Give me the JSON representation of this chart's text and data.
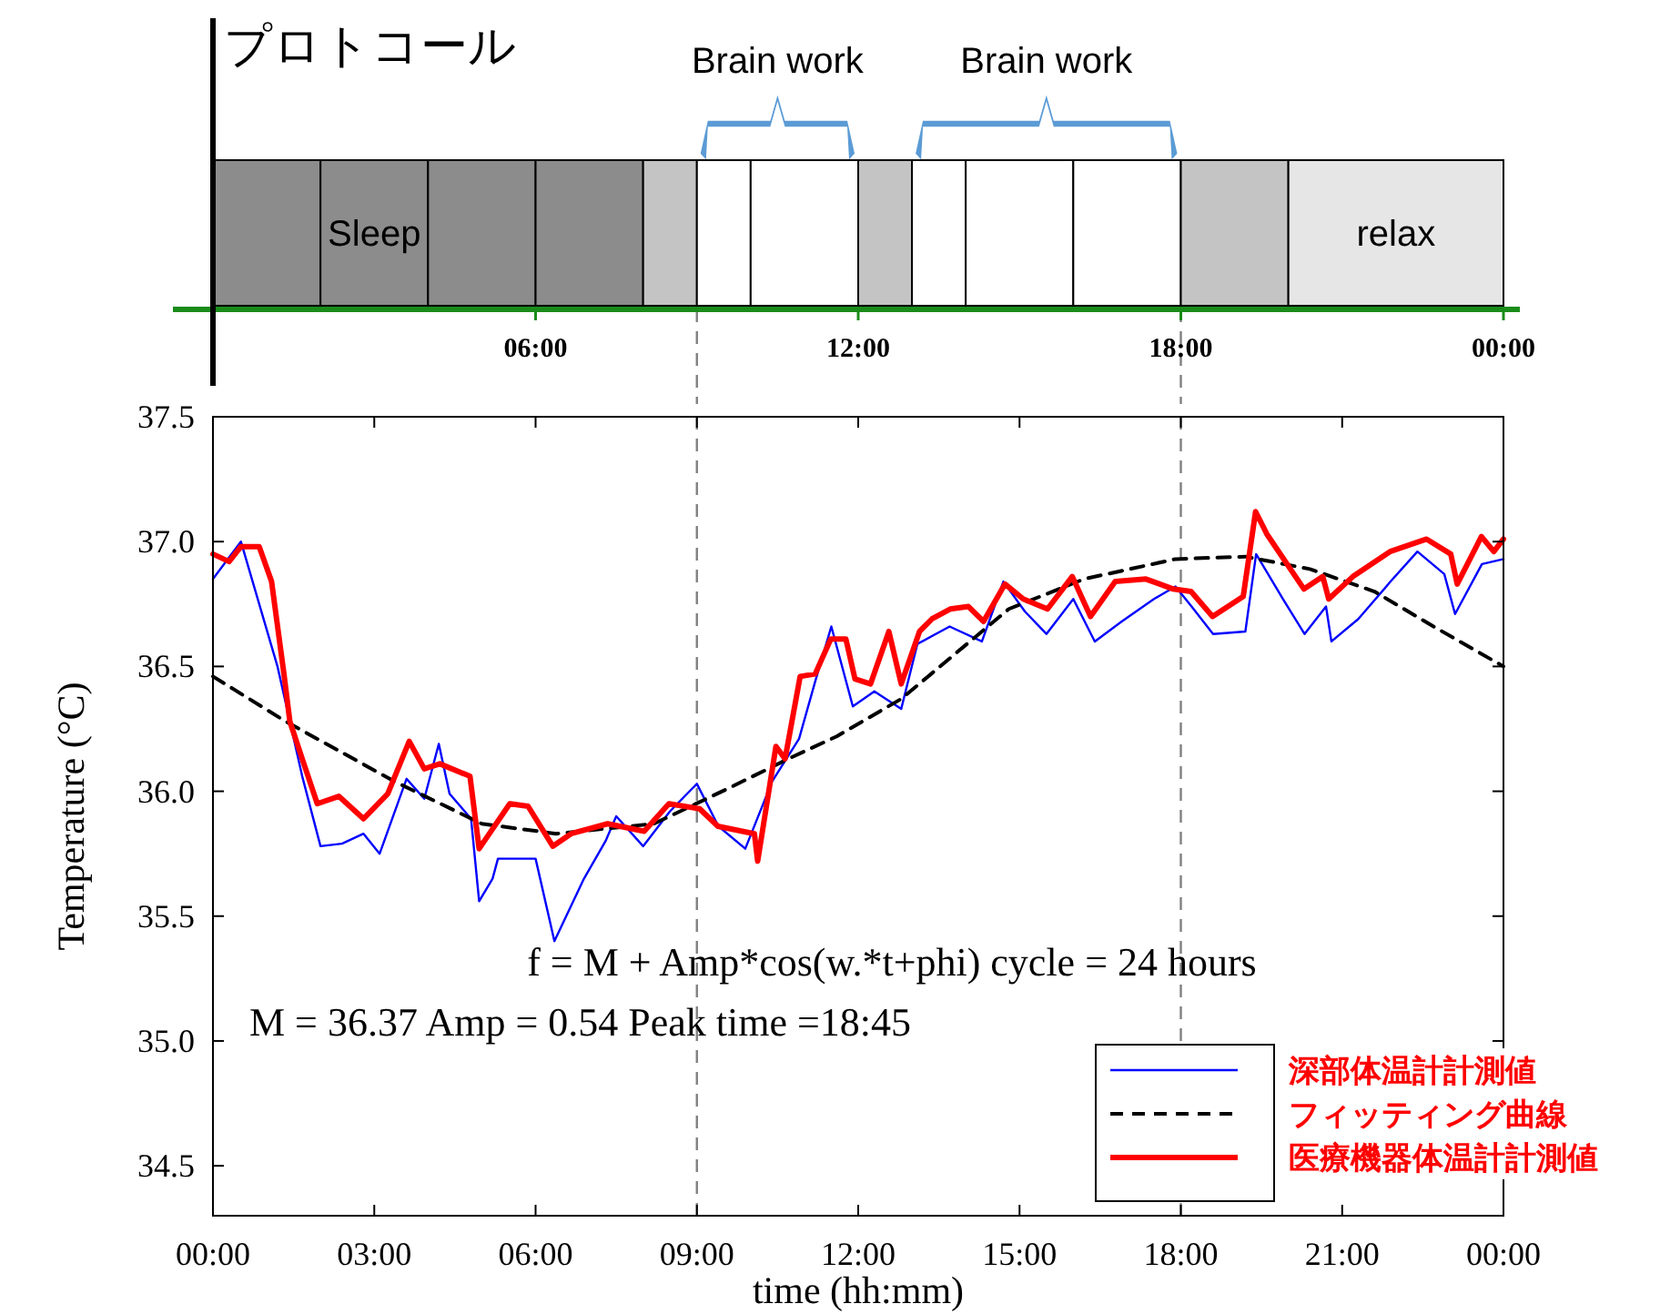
{
  "chart_data": [
    {
      "type": "bar",
      "orientation": "horizontal",
      "stacked": true,
      "title": "プロトコール",
      "categories": [
        null
      ],
      "xlim": [
        0,
        24
      ],
      "xticks": [
        {
          "value": 6,
          "label": "06:00"
        },
        {
          "value": 12,
          "label": "12:00"
        },
        {
          "value": 18,
          "label": "18:00"
        },
        {
          "value": 24,
          "label": "00:00"
        }
      ],
      "series": [
        {
          "color": "#8c8c8c",
          "values": [
            2
          ]
        },
        {
          "name": "Sleep",
          "color": "#8c8c8c",
          "values": [
            2
          ]
        },
        {
          "color": "#8c8c8c",
          "values": [
            2
          ]
        },
        {
          "color": "#8c8c8c",
          "values": [
            2
          ]
        },
        {
          "color": "#c4c4c4",
          "values": [
            1
          ]
        },
        {
          "color": "#ffffff",
          "values": [
            1
          ]
        },
        {
          "name": "Brain work",
          "color": "#ffffff",
          "values": [
            2
          ]
        },
        {
          "color": "#c4c4c4",
          "values": [
            1
          ]
        },
        {
          "color": "#ffffff",
          "values": [
            1
          ]
        },
        {
          "name": "Brain work",
          "color": "#ffffff",
          "values": [
            2
          ]
        },
        {
          "color": "#ffffff",
          "values": [
            2
          ]
        },
        {
          "color": "#c4c4c4",
          "values": [
            2
          ]
        },
        {
          "name": "relax",
          "color": "#e6e6e6",
          "values": [
            4
          ]
        }
      ],
      "ref_lines": [
        {
          "axis": "x",
          "value": 9,
          "color": "#808080",
          "line_style": "dashed"
        },
        {
          "axis": "x",
          "value": 18,
          "color": "#808080",
          "line_style": "dashed"
        }
      ]
    },
    {
      "type": "line",
      "xlabel": "time (hh:mm)",
      "ylabel": "Temperature (°C)",
      "xlim": [
        0,
        24
      ],
      "xticks": [
        {
          "value": 0,
          "label": "00:00"
        },
        {
          "value": 3,
          "label": "03:00"
        },
        {
          "value": 6,
          "label": "06:00"
        },
        {
          "value": 9,
          "label": "09:00"
        },
        {
          "value": 12,
          "label": "12:00"
        },
        {
          "value": 15,
          "label": "15:00"
        },
        {
          "value": 18,
          "label": "18:00"
        },
        {
          "value": 21,
          "label": "21:00"
        },
        {
          "value": 24,
          "label": "00:00"
        }
      ],
      "ylim": [
        34.3,
        37.5
      ],
      "yticks": [
        34.5,
        {
          "value": 35,
          "label": "35.0"
        },
        35.5,
        {
          "value": 36,
          "label": "36.0"
        },
        36.5,
        {
          "value": 37,
          "label": "37.0"
        },
        37.5
      ],
      "legend": "bottom right",
      "annotations": [
        "f = M + Amp*cos(w.*t+phi)  cycle = 24 hours",
        "M = 36.37  Amp = 0.54  Peak time =18:45"
      ],
      "ref_lines": [
        {
          "axis": "x",
          "value": 9,
          "color": "#808080",
          "line_style": "dashed"
        },
        {
          "axis": "x",
          "value": 18,
          "color": "#808080",
          "line_style": "dashed"
        }
      ],
      "series": [
        {
          "name": "深部体温計計測値",
          "color": "#0000ff",
          "x": [
            0,
            0.52,
            1.2,
            1.66,
            2.0,
            2.4,
            2.8,
            3.1,
            3.6,
            3.93,
            4.2,
            4.4,
            4.8,
            4.95,
            5.2,
            5.3,
            6.0,
            6.35,
            6.9,
            7.3,
            7.5,
            8.0,
            8.5,
            9.0,
            9.4,
            9.9,
            10.4,
            10.9,
            11.2,
            11.5,
            11.9,
            12.3,
            12.8,
            13.1,
            13.7,
            14.3,
            14.7,
            15.1,
            15.5,
            16.0,
            16.4,
            16.9,
            17.5,
            17.9,
            18.2,
            18.6,
            19.2,
            19.4,
            19.9,
            20.3,
            20.7,
            20.8,
            21.3,
            21.9,
            22.4,
            22.9,
            23.1,
            23.6,
            24
          ],
          "values": [
            36.85,
            37.0,
            36.5,
            36.06,
            35.78,
            35.79,
            35.83,
            35.75,
            36.05,
            35.97,
            36.19,
            35.99,
            35.89,
            35.56,
            35.65,
            35.73,
            35.73,
            35.4,
            35.65,
            35.8,
            35.9,
            35.78,
            35.92,
            36.03,
            35.86,
            35.77,
            36.04,
            36.21,
            36.44,
            36.66,
            36.34,
            36.4,
            36.33,
            36.59,
            36.66,
            36.6,
            36.84,
            36.72,
            36.63,
            36.77,
            36.6,
            36.68,
            36.77,
            36.82,
            36.74,
            36.63,
            36.64,
            36.95,
            36.77,
            36.63,
            36.74,
            36.6,
            36.69,
            36.84,
            36.96,
            36.87,
            36.71,
            36.91,
            36.93
          ]
        },
        {
          "name": "フィッティング曲線",
          "color": "#000000",
          "line_style": "dashed",
          "x": [
            0,
            1.35,
            3.37,
            5.0,
            6.38,
            8.2,
            9.57,
            10.7,
            11.6,
            12.8,
            13.8,
            14.8,
            16.2,
            17.9,
            19.2,
            20.4,
            21.6,
            22.7,
            24
          ],
          "values": [
            36.46,
            36.28,
            36.04,
            35.87,
            35.83,
            35.87,
            36.01,
            36.13,
            36.22,
            36.37,
            36.55,
            36.73,
            36.85,
            36.93,
            36.94,
            36.89,
            36.8,
            36.66,
            36.5
          ]
        },
        {
          "name": "医療機器体温計計測値",
          "color": "#ff0000",
          "x": [
            0,
            0.3,
            0.52,
            0.86,
            1.09,
            1.32,
            1.43,
            1.66,
            1.94,
            2.34,
            2.8,
            3.25,
            3.65,
            3.93,
            4.22,
            4.78,
            4.95,
            5.52,
            5.86,
            6.32,
            6.66,
            7.34,
            8.02,
            8.48,
            9.05,
            9.39,
            10.07,
            10.13,
            10.47,
            10.64,
            10.92,
            11.2,
            11.49,
            11.77,
            11.94,
            12.23,
            12.57,
            12.8,
            13.14,
            13.37,
            13.71,
            14.05,
            14.33,
            14.73,
            15.07,
            15.52,
            15.98,
            16.32,
            16.78,
            17.35,
            17.86,
            18.19,
            18.59,
            19.16,
            19.39,
            19.6,
            20.29,
            20.64,
            20.75,
            21.2,
            21.89,
            22.57,
            23.02,
            23.14,
            23.59,
            23.82,
            24
          ],
          "values": [
            36.95,
            36.92,
            36.98,
            36.98,
            36.84,
            36.47,
            36.28,
            36.13,
            35.95,
            35.98,
            35.89,
            35.99,
            36.2,
            36.09,
            36.11,
            36.06,
            35.77,
            35.95,
            35.94,
            35.78,
            35.83,
            35.87,
            35.84,
            35.95,
            35.93,
            35.86,
            35.83,
            35.72,
            36.18,
            36.13,
            36.46,
            36.47,
            36.61,
            36.61,
            36.45,
            36.43,
            36.64,
            36.43,
            36.64,
            36.69,
            36.73,
            36.74,
            36.68,
            36.83,
            36.77,
            36.73,
            36.86,
            36.7,
            36.84,
            36.85,
            36.81,
            36.8,
            36.7,
            36.78,
            37.12,
            37.03,
            36.81,
            36.86,
            36.77,
            36.86,
            36.96,
            37.01,
            36.95,
            36.83,
            37.02,
            36.96,
            37.01
          ]
        }
      ]
    }
  ]
}
